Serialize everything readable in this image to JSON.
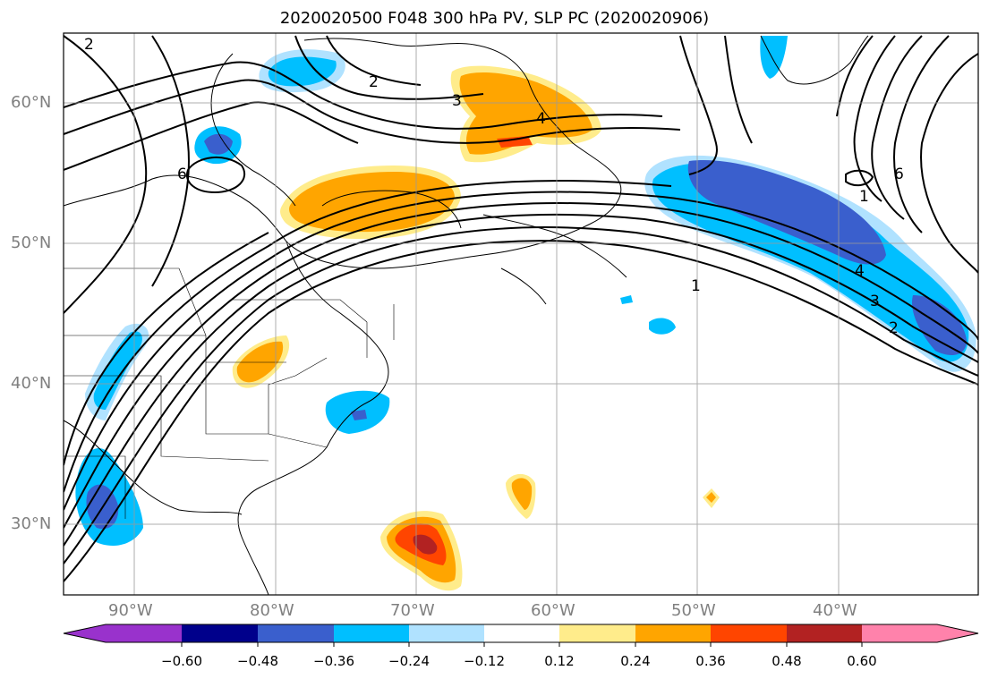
{
  "title": "2020020500 F048 300 hPa PV, SLP PC (2020020906)",
  "map": {
    "projection": "equirectangular",
    "lon_range": [
      -95,
      -30
    ],
    "lat_range": [
      25,
      65
    ],
    "gridlines": true,
    "lat_labels": [
      "60°N",
      "50°N",
      "40°N",
      "30°N"
    ],
    "lon_labels": [
      "90°W",
      "80°W",
      "70°W",
      "60°W",
      "50°W",
      "40°W"
    ],
    "contour_labels": [
      "2",
      "3",
      "4",
      "1",
      "4",
      "3",
      "2",
      "6",
      "1",
      "6",
      "2"
    ]
  },
  "colorbar": {
    "ticks": [
      "−0.60",
      "−0.48",
      "−0.36",
      "−0.24",
      "−0.12",
      "0.12",
      "0.24",
      "0.36",
      "0.48",
      "0.60"
    ],
    "colors": [
      "#9932cc",
      "#00008b",
      "#3a5fcd",
      "#00bfff",
      "#b0e2ff",
      "#ffffff",
      "#ffec8b",
      "#ffa500",
      "#ff4500",
      "#b22222",
      "#ff82ab"
    ],
    "extend": "both"
  }
}
